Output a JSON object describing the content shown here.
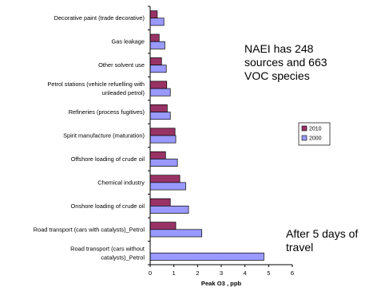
{
  "chart_data": {
    "type": "bar",
    "orientation": "horizontal",
    "categories": [
      [
        "Decorative paint (trade decorative)"
      ],
      [
        "Gas leakage"
      ],
      [
        "Other solvent use"
      ],
      [
        "Petrol stations (vehicle refuelling with",
        "unleaded petrol)"
      ],
      [
        "Refineries (process fugitives)"
      ],
      [
        "Spirit manufacture (maturation)"
      ],
      [
        "Offshore loading of crude oil"
      ],
      [
        "Chemical industry"
      ],
      [
        "Onshore loading of crude oil"
      ],
      [
        "Road transport (cars with catalysts)_Petrol"
      ],
      [
        "Road transport (cars without",
        "catalysts)_Petrol"
      ]
    ],
    "series": [
      {
        "name": "2010",
        "color": "#993366",
        "values": [
          0.3,
          0.38,
          0.48,
          0.7,
          0.72,
          1.05,
          0.65,
          1.25,
          0.85,
          1.08,
          null
        ]
      },
      {
        "name": "2000",
        "color": "#9999ff",
        "values": [
          0.58,
          0.62,
          0.68,
          0.85,
          0.85,
          1.08,
          1.15,
          1.5,
          1.62,
          2.18,
          4.8
        ]
      }
    ],
    "xlim": [
      0,
      6
    ],
    "xticks": [
      "0",
      "1",
      "2",
      "3",
      "4",
      "5",
      "6"
    ],
    "xlabel": "Peak O3 , ppb",
    "ylabel": "",
    "title": "",
    "legend_placement": "right",
    "legend_order": [
      "2010",
      "2000"
    ],
    "grid": false,
    "annotations": [
      [
        "NAEI has 248",
        "sources and 663",
        "VOC species"
      ],
      [
        "After 5 days of",
        "travel"
      ]
    ]
  }
}
